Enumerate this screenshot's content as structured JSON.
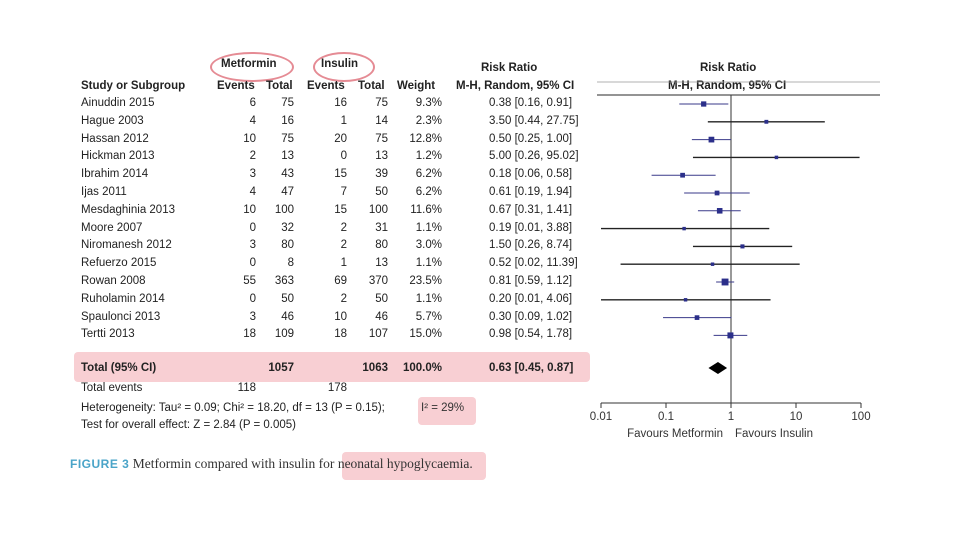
{
  "headers": {
    "study": "Study or Subgroup",
    "metformin": "Metformin",
    "insulin": "Insulin",
    "events": "Events",
    "total": "Total",
    "weight": "Weight",
    "rr_title": "Risk Ratio",
    "rr_sub": "M-H, Random, 95% CI"
  },
  "total_row": {
    "label": "Total (95% CI)",
    "met_total": "1057",
    "ins_total": "1063",
    "weight": "100.0%",
    "ci": "0.63 [0.45, 0.87]"
  },
  "total_events": {
    "label": "Total events",
    "met": "118",
    "ins": "178"
  },
  "heterogeneity": {
    "text": "Heterogeneity: Tau² = 0.09; Chi² = 18.20, df = 13 (P = 0.15);",
    "i2": "I² = 29%"
  },
  "overall_effect": "Test for overall effect: Z = 2.84 (P = 0.005)",
  "caption": {
    "label": "FIGURE 3",
    "text": "Metformin compared with insulin for",
    "highlight": "neonatal hypoglycaemia."
  },
  "colors": {
    "highlight": "#f8cfd3",
    "oval": "#e58b94",
    "marker": "#2b2f8a",
    "caption_label": "#4aa4c8"
  },
  "chart_data": {
    "type": "forest",
    "scale": "log",
    "x_ticks": [
      0.01,
      0.1,
      1,
      10,
      100
    ],
    "x_tick_labels": [
      "0.01",
      "0.1",
      "1",
      "10",
      "100"
    ],
    "xlim": [
      0.01,
      100
    ],
    "left_label": "Favours Metformin",
    "right_label": "Favours Insulin",
    "studies": [
      {
        "name": "Ainuddin 2015",
        "met_events": "6",
        "met_total": "75",
        "ins_events": "16",
        "ins_total": "75",
        "weight": "9.3%",
        "ci_text": "0.38 [0.16, 0.91]",
        "rr": 0.38,
        "lo": 0.16,
        "hi": 0.91,
        "w": 9.3
      },
      {
        "name": "Hague 2003",
        "met_events": "4",
        "met_total": "16",
        "ins_events": "1",
        "ins_total": "14",
        "weight": "2.3%",
        "ci_text": "3.50 [0.44, 27.75]",
        "rr": 3.5,
        "lo": 0.44,
        "hi": 27.75,
        "w": 2.3
      },
      {
        "name": "Hassan 2012",
        "met_events": "10",
        "met_total": "75",
        "ins_events": "20",
        "ins_total": "75",
        "weight": "12.8%",
        "ci_text": "0.50 [0.25, 1.00]",
        "rr": 0.5,
        "lo": 0.25,
        "hi": 1.0,
        "w": 12.8
      },
      {
        "name": "Hickman 2013",
        "met_events": "2",
        "met_total": "13",
        "ins_events": "0",
        "ins_total": "13",
        "weight": "1.2%",
        "ci_text": "5.00 [0.26, 95.02]",
        "rr": 5.0,
        "lo": 0.26,
        "hi": 95.02,
        "w": 1.2
      },
      {
        "name": "Ibrahim 2014",
        "met_events": "3",
        "met_total": "43",
        "ins_events": "15",
        "ins_total": "39",
        "weight": "6.2%",
        "ci_text": "0.18 [0.06, 0.58]",
        "rr": 0.18,
        "lo": 0.06,
        "hi": 0.58,
        "w": 6.2
      },
      {
        "name": "Ijas 2011",
        "met_events": "4",
        "met_total": "47",
        "ins_events": "7",
        "ins_total": "50",
        "weight": "6.2%",
        "ci_text": "0.61 [0.19, 1.94]",
        "rr": 0.61,
        "lo": 0.19,
        "hi": 1.94,
        "w": 6.2
      },
      {
        "name": "Mesdaghinia 2013",
        "met_events": "10",
        "met_total": "100",
        "ins_events": "15",
        "ins_total": "100",
        "weight": "11.6%",
        "ci_text": "0.67 [0.31, 1.41]",
        "rr": 0.67,
        "lo": 0.31,
        "hi": 1.41,
        "w": 11.6
      },
      {
        "name": "Moore 2007",
        "met_events": "0",
        "met_total": "32",
        "ins_events": "2",
        "ins_total": "31",
        "weight": "1.1%",
        "ci_text": "0.19 [0.01, 3.88]",
        "rr": 0.19,
        "lo": 0.01,
        "hi": 3.88,
        "w": 1.1
      },
      {
        "name": "Niromanesh 2012",
        "met_events": "3",
        "met_total": "80",
        "ins_events": "2",
        "ins_total": "80",
        "weight": "3.0%",
        "ci_text": "1.50 [0.26, 8.74]",
        "rr": 1.5,
        "lo": 0.26,
        "hi": 8.74,
        "w": 3.0
      },
      {
        "name": "Refuerzo 2015",
        "met_events": "0",
        "met_total": "8",
        "ins_events": "1",
        "ins_total": "13",
        "weight": "1.1%",
        "ci_text": "0.52 [0.02, 11.39]",
        "rr": 0.52,
        "lo": 0.02,
        "hi": 11.39,
        "w": 1.1
      },
      {
        "name": "Rowan 2008",
        "met_events": "55",
        "met_total": "363",
        "ins_events": "69",
        "ins_total": "370",
        "weight": "23.5%",
        "ci_text": "0.81 [0.59, 1.12]",
        "rr": 0.81,
        "lo": 0.59,
        "hi": 1.12,
        "w": 23.5
      },
      {
        "name": "Ruholamin 2014",
        "met_events": "0",
        "met_total": "50",
        "ins_events": "2",
        "ins_total": "50",
        "weight": "1.1%",
        "ci_text": "0.20 [0.01, 4.06]",
        "rr": 0.2,
        "lo": 0.01,
        "hi": 4.06,
        "w": 1.1
      },
      {
        "name": "Spaulonci 2013",
        "met_events": "3",
        "met_total": "46",
        "ins_events": "10",
        "ins_total": "46",
        "weight": "5.7%",
        "ci_text": "0.30 [0.09, 1.02]",
        "rr": 0.3,
        "lo": 0.09,
        "hi": 1.02,
        "w": 5.7
      },
      {
        "name": "Tertti 2013",
        "met_events": "18",
        "met_total": "109",
        "ins_events": "18",
        "ins_total": "107",
        "weight": "15.0%",
        "ci_text": "0.98 [0.54, 1.78]",
        "rr": 0.98,
        "lo": 0.54,
        "hi": 1.78,
        "w": 15.0
      }
    ],
    "pooled": {
      "rr": 0.63,
      "lo": 0.45,
      "hi": 0.87
    }
  }
}
